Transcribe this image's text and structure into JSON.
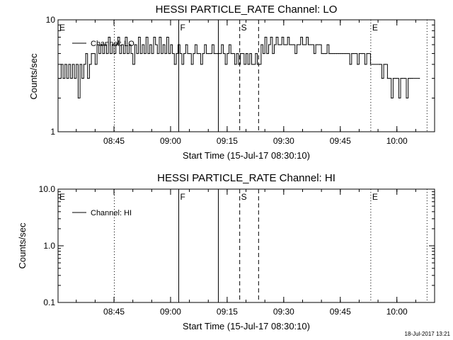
{
  "footer": {
    "timestamp": "18-Jul-2017 13:21"
  },
  "chart_data": [
    {
      "type": "line",
      "title": "HESSI PARTICLE_RATE Channel: LO",
      "xlabel": "Start Time (15-Jul-17 08:30:10)",
      "ylabel": "Counts/sec",
      "yscale": "log",
      "xlim": [
        "08:30:10",
        "10:10:00"
      ],
      "ylim": [
        1,
        10
      ],
      "xticks": [
        "08:45",
        "09:00",
        "09:15",
        "09:30",
        "09:45",
        "10:00"
      ],
      "yticks": [
        {
          "value": 1,
          "label": "1"
        },
        {
          "value": 10,
          "label": "10"
        }
      ],
      "markers": [
        {
          "time": "08:30:10",
          "label": "E",
          "style": "none"
        },
        {
          "time": "08:45:05",
          "label": "",
          "style": "dotted"
        },
        {
          "time": "09:02:10",
          "label": "F",
          "style": "solid"
        },
        {
          "time": "09:12:40",
          "label": "",
          "style": "solid"
        },
        {
          "time": "09:18:20",
          "label": "S",
          "style": "dashed"
        },
        {
          "time": "09:23:20",
          "label": "",
          "style": "dashed"
        },
        {
          "time": "09:53:05",
          "label": "E",
          "style": "dotted"
        },
        {
          "time": "10:08:00",
          "label": "",
          "style": "dotted"
        }
      ],
      "legend": {
        "position": "top-left"
      },
      "series": [
        {
          "name": "Channel: LO",
          "points": [
            [
              "08:30:30",
              3
            ],
            [
              "08:31:00",
              4
            ],
            [
              "08:31:30",
              3
            ],
            [
              "08:32:00",
              4
            ],
            [
              "08:32:30",
              3
            ],
            [
              "08:33:00",
              4
            ],
            [
              "08:33:30",
              3
            ],
            [
              "08:34:00",
              4
            ],
            [
              "08:34:30",
              3
            ],
            [
              "08:35:00",
              4
            ],
            [
              "08:35:30",
              2
            ],
            [
              "08:36:00",
              4
            ],
            [
              "08:36:30",
              3
            ],
            [
              "08:37:00",
              4
            ],
            [
              "08:37:30",
              5
            ],
            [
              "08:38:00",
              3
            ],
            [
              "08:38:30",
              4
            ],
            [
              "08:39:00",
              5
            ],
            [
              "08:39:30",
              5
            ],
            [
              "08:40:00",
              4
            ],
            [
              "08:40:30",
              6
            ],
            [
              "08:41:00",
              5
            ],
            [
              "08:41:30",
              6
            ],
            [
              "08:42:00",
              5
            ],
            [
              "08:42:30",
              6
            ],
            [
              "08:43:00",
              5
            ],
            [
              "08:43:30",
              7
            ],
            [
              "08:44:00",
              5
            ],
            [
              "08:44:30",
              6
            ],
            [
              "08:45:00",
              5
            ],
            [
              "08:45:30",
              6
            ],
            [
              "08:46:00",
              7
            ],
            [
              "08:46:30",
              5
            ],
            [
              "08:47:00",
              6
            ],
            [
              "08:47:30",
              5
            ],
            [
              "08:48:00",
              7
            ],
            [
              "08:48:30",
              5
            ],
            [
              "08:49:00",
              6
            ],
            [
              "08:49:30",
              5
            ],
            [
              "08:50:00",
              4
            ],
            [
              "08:50:30",
              6
            ],
            [
              "08:51:00",
              5
            ],
            [
              "08:51:30",
              7
            ],
            [
              "08:52:00",
              5
            ],
            [
              "08:52:30",
              6
            ],
            [
              "08:53:00",
              5
            ],
            [
              "08:53:30",
              7
            ],
            [
              "08:54:00",
              5
            ],
            [
              "08:54:30",
              6
            ],
            [
              "08:55:00",
              5
            ],
            [
              "08:55:30",
              7
            ],
            [
              "08:56:00",
              6
            ],
            [
              "08:56:30",
              5
            ],
            [
              "08:57:00",
              7
            ],
            [
              "08:57:30",
              5
            ],
            [
              "08:58:00",
              6
            ],
            [
              "08:58:30",
              5
            ],
            [
              "08:59:00",
              7
            ],
            [
              "08:59:30",
              5
            ],
            [
              "09:00:00",
              6
            ],
            [
              "09:00:30",
              5
            ],
            [
              "09:01:00",
              4
            ],
            [
              "09:01:30",
              5
            ],
            [
              "09:02:00",
              6
            ],
            [
              "09:02:30",
              5
            ],
            [
              "09:03:00",
              4
            ],
            [
              "09:03:30",
              5
            ],
            [
              "09:04:00",
              6
            ],
            [
              "09:04:30",
              5
            ],
            [
              "09:05:00",
              5
            ],
            [
              "09:05:30",
              4
            ],
            [
              "09:06:00",
              5
            ],
            [
              "09:06:30",
              6
            ],
            [
              "09:07:00",
              5
            ],
            [
              "09:07:30",
              5
            ],
            [
              "09:08:00",
              4
            ],
            [
              "09:08:30",
              5
            ],
            [
              "09:09:00",
              6
            ],
            [
              "09:09:30",
              5
            ],
            [
              "09:10:00",
              5
            ],
            [
              "09:10:30",
              5
            ],
            [
              "09:11:00",
              6
            ],
            [
              "09:11:30",
              5
            ],
            [
              "09:12:00",
              5
            ],
            [
              "09:12:30",
              5
            ],
            [
              "09:13:00",
              5
            ],
            [
              "09:13:30",
              6
            ],
            [
              "09:14:00",
              5
            ],
            [
              "09:14:30",
              4
            ],
            [
              "09:15:00",
              5
            ],
            [
              "09:15:30",
              6
            ],
            [
              "09:16:00",
              5
            ],
            [
              "09:16:30",
              5
            ],
            [
              "09:17:00",
              4
            ],
            [
              "09:17:30",
              5
            ],
            [
              "09:18:00",
              4
            ],
            [
              "09:18:30",
              5
            ],
            [
              "09:19:00",
              5
            ],
            [
              "09:19:30",
              4
            ],
            [
              "09:20:00",
              5
            ],
            [
              "09:20:30",
              4
            ],
            [
              "09:21:00",
              5
            ],
            [
              "09:21:30",
              4
            ],
            [
              "09:22:00",
              4
            ],
            [
              "09:22:30",
              5
            ],
            [
              "09:23:00",
              4
            ],
            [
              "09:23:30",
              4
            ],
            [
              "09:24:00",
              6
            ],
            [
              "09:24:30",
              5
            ],
            [
              "09:25:00",
              7
            ],
            [
              "09:25:30",
              5
            ],
            [
              "09:26:00",
              6
            ],
            [
              "09:26:30",
              7
            ],
            [
              "09:27:00",
              5
            ],
            [
              "09:27:30",
              6
            ],
            [
              "09:28:00",
              7
            ],
            [
              "09:28:30",
              6
            ],
            [
              "09:29:00",
              6
            ],
            [
              "09:29:30",
              7
            ],
            [
              "09:30:00",
              6
            ],
            [
              "09:30:30",
              6
            ],
            [
              "09:31:00",
              7
            ],
            [
              "09:31:30",
              6
            ],
            [
              "09:32:00",
              6
            ],
            [
              "09:32:30",
              6
            ],
            [
              "09:33:00",
              5
            ],
            [
              "09:33:30",
              6
            ],
            [
              "09:34:00",
              6
            ],
            [
              "09:34:30",
              7
            ],
            [
              "09:35:00",
              6
            ],
            [
              "09:35:30",
              6
            ],
            [
              "09:36:00",
              7
            ],
            [
              "09:36:30",
              6
            ],
            [
              "09:37:00",
              6
            ],
            [
              "09:37:30",
              6
            ],
            [
              "09:38:00",
              5
            ],
            [
              "09:38:30",
              6
            ],
            [
              "09:39:00",
              6
            ],
            [
              "09:39:30",
              6
            ],
            [
              "09:40:00",
              5
            ],
            [
              "09:40:30",
              5
            ],
            [
              "09:41:00",
              5
            ],
            [
              "09:41:30",
              6
            ],
            [
              "09:42:00",
              5
            ],
            [
              "09:42:30",
              5
            ],
            [
              "09:43:00",
              5
            ],
            [
              "09:43:30",
              5
            ],
            [
              "09:44:00",
              5
            ],
            [
              "09:44:30",
              5
            ],
            [
              "09:45:00",
              5
            ],
            [
              "09:45:30",
              5
            ],
            [
              "09:46:00",
              5
            ],
            [
              "09:46:30",
              5
            ],
            [
              "09:47:00",
              5
            ],
            [
              "09:47:30",
              4
            ],
            [
              "09:48:00",
              5
            ],
            [
              "09:48:30",
              5
            ],
            [
              "09:49:00",
              5
            ],
            [
              "09:49:30",
              4
            ],
            [
              "09:50:00",
              5
            ],
            [
              "09:50:30",
              5
            ],
            [
              "09:51:00",
              5
            ],
            [
              "09:51:30",
              4
            ],
            [
              "09:52:00",
              5
            ],
            [
              "09:52:30",
              5
            ],
            [
              "09:53:00",
              4
            ],
            [
              "09:55:30",
              4
            ],
            [
              "09:56:00",
              3
            ],
            [
              "09:56:30",
              4
            ],
            [
              "09:57:00",
              4
            ],
            [
              "09:57:30",
              3
            ],
            [
              "09:58:00",
              3
            ],
            [
              "09:58:30",
              2
            ],
            [
              "09:59:00",
              3
            ],
            [
              "09:59:30",
              3
            ],
            [
              "10:00:00",
              3
            ],
            [
              "10:00:30",
              2
            ],
            [
              "10:01:00",
              3
            ],
            [
              "10:01:30",
              3
            ],
            [
              "10:02:00",
              3
            ],
            [
              "10:02:30",
              2
            ],
            [
              "10:03:00",
              3
            ],
            [
              "10:03:30",
              3
            ],
            [
              "10:04:00",
              3
            ],
            [
              "10:06:00",
              3
            ]
          ]
        }
      ]
    },
    {
      "type": "line",
      "title": "HESSI PARTICLE_RATE Channel: HI",
      "xlabel": "Start Time (15-Jul-17 08:30:10)",
      "ylabel": "Counts/sec",
      "yscale": "log",
      "xlim": [
        "08:30:10",
        "10:10:00"
      ],
      "ylim": [
        0.1,
        10
      ],
      "xticks": [
        "08:45",
        "09:00",
        "09:15",
        "09:30",
        "09:45",
        "10:00"
      ],
      "yticks": [
        {
          "value": 0.1,
          "label": "0.1"
        },
        {
          "value": 1,
          "label": "1.0"
        },
        {
          "value": 10,
          "label": "10.0"
        }
      ],
      "markers": [
        {
          "time": "08:30:10",
          "label": "E",
          "style": "none"
        },
        {
          "time": "08:45:05",
          "label": "",
          "style": "dotted"
        },
        {
          "time": "09:02:10",
          "label": "F",
          "style": "solid"
        },
        {
          "time": "09:12:40",
          "label": "",
          "style": "solid"
        },
        {
          "time": "09:18:20",
          "label": "S",
          "style": "dashed"
        },
        {
          "time": "09:23:20",
          "label": "",
          "style": "dashed"
        },
        {
          "time": "09:53:05",
          "label": "E",
          "style": "dotted"
        },
        {
          "time": "10:08:00",
          "label": "",
          "style": "dotted"
        }
      ],
      "legend": {
        "position": "top-left"
      },
      "series": [
        {
          "name": "Channel: HI",
          "points": []
        }
      ]
    }
  ]
}
